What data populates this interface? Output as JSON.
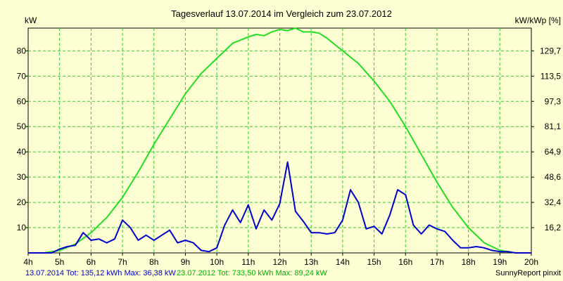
{
  "chart_data": {
    "type": "line",
    "title": "Tagesverlauf 13.07.2014 im Vergleich zum 23.07.2012",
    "ylabel_left": "kW",
    "ylabel_right": "kW/kWp [%]",
    "x_ticks": [
      "4h",
      "5h",
      "6h",
      "7h",
      "8h",
      "9h",
      "10h",
      "11h",
      "12h",
      "13h",
      "14h",
      "15h",
      "16h",
      "17h",
      "18h",
      "19h",
      "20h"
    ],
    "xlim": [
      4,
      20
    ],
    "y_ticks_left": [
      "10",
      "20",
      "30",
      "40",
      "50",
      "60",
      "70",
      "80"
    ],
    "y_ticks_right": [
      "16,2",
      "32,4",
      "48,6",
      "64,9",
      "81,1",
      "97,3",
      "113,5",
      "129,7"
    ],
    "ylim": [
      0,
      89
    ],
    "grid": true,
    "series": [
      {
        "name": "13.07.2014",
        "color": "#0000cc",
        "x": [
          4.0,
          4.5,
          4.75,
          5.0,
          5.25,
          5.5,
          5.75,
          6.0,
          6.25,
          6.5,
          6.75,
          7.0,
          7.25,
          7.5,
          7.75,
          8.0,
          8.25,
          8.5,
          8.75,
          9.0,
          9.25,
          9.5,
          9.75,
          10.0,
          10.25,
          10.5,
          10.75,
          11.0,
          11.25,
          11.5,
          11.75,
          12.0,
          12.25,
          12.5,
          12.75,
          13.0,
          13.25,
          13.5,
          13.75,
          14.0,
          14.25,
          14.5,
          14.75,
          15.0,
          15.25,
          15.5,
          15.75,
          16.0,
          16.25,
          16.5,
          16.75,
          17.0,
          17.25,
          17.5,
          17.75,
          18.0,
          18.25,
          18.5,
          18.75,
          19.0,
          19.25,
          19.5,
          20.0
        ],
        "values": [
          0,
          0,
          0,
          1.5,
          2.5,
          3,
          8,
          5,
          5.5,
          4,
          5.5,
          13,
          10,
          5,
          7,
          5,
          7,
          9,
          4,
          5,
          4,
          1,
          0.5,
          2,
          11,
          17,
          12,
          19,
          9.5,
          17,
          13,
          19.5,
          36,
          16.5,
          12.5,
          8,
          8,
          7.5,
          8,
          13,
          25,
          20,
          9.5,
          10.5,
          7.5,
          15,
          25,
          23,
          11,
          7.5,
          11,
          9.5,
          8.5,
          5,
          2,
          2,
          2.5,
          2,
          1,
          0.5,
          0.5,
          0,
          0
        ],
        "total": "Tot: 135,12 kWh",
        "max": "Max: 36,38 kW"
      },
      {
        "name": "23.07.2012",
        "color": "#22dd22",
        "x": [
          4.0,
          4.5,
          5.0,
          5.5,
          6.0,
          6.5,
          7.0,
          7.5,
          8.0,
          8.5,
          9.0,
          9.5,
          10.0,
          10.5,
          11.0,
          11.25,
          11.5,
          11.75,
          12.0,
          12.25,
          12.5,
          12.75,
          13.0,
          13.25,
          13.5,
          14.0,
          14.5,
          15.0,
          15.5,
          16.0,
          16.5,
          17.0,
          17.5,
          18.0,
          18.5,
          19.0,
          19.5,
          20.0
        ],
        "values": [
          0,
          0,
          1,
          3.5,
          8,
          14,
          22,
          32,
          43,
          53,
          63,
          71,
          77,
          83,
          85.5,
          86.5,
          86,
          87.5,
          88.5,
          88,
          89,
          87.5,
          87.5,
          87,
          85,
          80,
          75,
          68,
          60,
          50,
          39,
          28,
          18,
          10,
          4,
          1,
          0,
          0
        ],
        "total": "Tot: 733,50 kWh",
        "max": "Max: 89,24 kW"
      }
    ]
  },
  "footer": {
    "legend_blue": "13.07.2014 Tot: 135,12 kWh Max: 36,38 kW",
    "legend_green": "23.07.2012 Tot: 733,50 kWh Max: 89,24 kW",
    "credit": "SunnyReport pinxit"
  }
}
